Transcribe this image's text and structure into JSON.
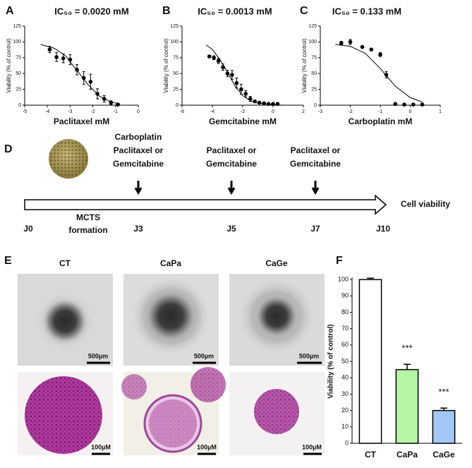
{
  "chart_data": [
    {
      "type": "scatter",
      "panel": "A",
      "title": "IC₅₀ = 0.0020 mM",
      "xlabel": "Paclitaxel mM",
      "ylabel": "Viability (% of control)",
      "xlim": [
        -5,
        0
      ],
      "xticks": [
        -5,
        -4,
        -3,
        -2,
        -1,
        0
      ],
      "ylim": [
        0,
        125
      ],
      "yticks": [
        0,
        25,
        50,
        75,
        100,
        125
      ],
      "series": [
        {
          "color": "#000000",
          "x": [
            -3.9,
            -3.6,
            -3.3,
            -3.0,
            -2.7,
            -2.4,
            -2.1,
            -1.8,
            -1.5,
            -1.2,
            -0.9
          ],
          "values": [
            88,
            76,
            74,
            72,
            56,
            43,
            37,
            18,
            10,
            4,
            1
          ],
          "errors": [
            5,
            7,
            7,
            8,
            8,
            10,
            12,
            8,
            5,
            3,
            1
          ]
        }
      ],
      "fit": {
        "x": [
          -4.3,
          -3.7,
          -3.2,
          -2.7,
          -2.2,
          -1.7,
          -1.2,
          -0.8
        ],
        "y": [
          96,
          90,
          78,
          55,
          32,
          14,
          5,
          2
        ]
      }
    },
    {
      "type": "scatter",
      "panel": "B",
      "title": "IC₅₀ = 0.0013 mM",
      "xlabel": "Gemcitabine  mM",
      "ylabel": "Viability (% of control)",
      "xlim": [
        -6,
        2
      ],
      "xticks": [
        -6,
        -4,
        -2,
        0,
        2
      ],
      "ylim": [
        0,
        125
      ],
      "yticks": [
        0,
        25,
        50,
        75,
        100,
        125
      ],
      "series": [
        {
          "color": "#000000",
          "x": [
            -4.2,
            -3.9,
            -3.6,
            -3.3,
            -3.0,
            -2.7,
            -2.4,
            -2.1,
            -1.8,
            -1.5,
            -1.2,
            -0.9,
            -0.6,
            -0.3,
            0.0,
            0.3
          ],
          "values": [
            77,
            75,
            70,
            60,
            50,
            48,
            35,
            25,
            18,
            10,
            6,
            4,
            3,
            2,
            2,
            2
          ],
          "errors": [
            2,
            3,
            4,
            5,
            5,
            7,
            8,
            8,
            5,
            4,
            2,
            1,
            1,
            1,
            1,
            1
          ]
        }
      ],
      "fit": {
        "x": [
          -4.4,
          -4,
          -3.5,
          -3,
          -2.5,
          -2,
          -1.5,
          -1,
          0,
          0.6
        ],
        "y": [
          95,
          88,
          72,
          52,
          30,
          15,
          7,
          3,
          1,
          0
        ]
      }
    },
    {
      "type": "scatter",
      "panel": "C",
      "title": "IC₅₀ = 0.133 mM",
      "xlabel": "Carboplatin mM",
      "ylabel": "Viability (% of control)",
      "xlim": [
        -3,
        1
      ],
      "xticks": [
        -3,
        -2,
        -1,
        0,
        1
      ],
      "ylim": [
        0,
        125
      ],
      "yticks": [
        0,
        25,
        50,
        75,
        100,
        125
      ],
      "series": [
        {
          "color": "#000000",
          "x": [
            -2.3,
            -2.0,
            -1.6,
            -1.3,
            -1.0,
            -0.8,
            -0.5,
            -0.2,
            0.1,
            0.4
          ],
          "values": [
            98,
            100,
            92,
            88,
            80,
            48,
            2,
            1,
            1,
            1
          ],
          "errors": [
            3,
            4,
            2,
            2,
            3,
            5,
            1,
            1,
            1,
            1
          ]
        }
      ],
      "fit": {
        "x": [
          -2.5,
          -2,
          -1.5,
          -1,
          -0.5,
          0,
          0.4
        ],
        "y": [
          96,
          93,
          82,
          58,
          30,
          12,
          5
        ]
      }
    },
    {
      "type": "bar",
      "panel": "F",
      "ylabel": "Viability (% of control)",
      "categories": [
        "CT",
        "CaPa",
        "CaGe"
      ],
      "values": [
        100,
        45,
        20
      ],
      "errors": [
        0.8,
        3.2,
        1.5
      ],
      "colors": [
        "#ffffff",
        "#b5f5a5",
        "#a3c8f7"
      ],
      "ylim": [
        0,
        100
      ],
      "yticks": [
        0,
        10,
        20,
        30,
        40,
        50,
        60,
        70,
        80,
        90,
        100
      ],
      "annotations": [
        {
          "category": "CaPa",
          "text": "***"
        },
        {
          "category": "CaGe",
          "text": "***"
        }
      ]
    }
  ],
  "timeline": {
    "panel": "D",
    "treatments": [
      {
        "lines": [
          "Carboplatin",
          "Paclitaxel or",
          "Gemcitabine"
        ]
      },
      {
        "lines": [
          "Paclitaxel or",
          "Gemcitabine"
        ]
      },
      {
        "lines": [
          "Paclitaxel or",
          "Gemcitabine"
        ]
      }
    ],
    "times": [
      "J0",
      "J3",
      "J5",
      "J7",
      "J10"
    ],
    "formation": [
      "MCTS",
      "formation"
    ],
    "endpoint": "Cell viability"
  },
  "images": {
    "panel": "E",
    "columns": [
      "CT",
      "CaPa",
      "CaGe"
    ],
    "scale_top": [
      "500µm",
      "500µm",
      "500µm"
    ],
    "scale_bottom": [
      "100µM",
      "100µM",
      "100µM"
    ]
  }
}
